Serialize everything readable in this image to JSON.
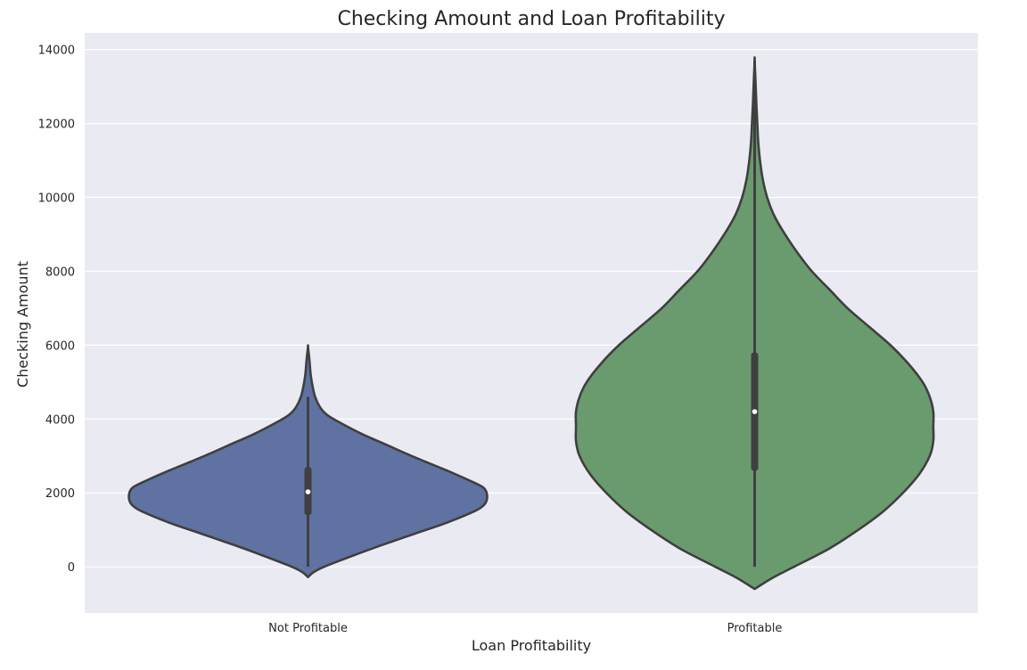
{
  "chart_data": {
    "type": "violin",
    "title": "Checking Amount and Loan Profitability",
    "xlabel": "Loan Profitability",
    "ylabel": "Checking Amount",
    "ylim": [
      -1250,
      14450
    ],
    "yticks": [
      0,
      2000,
      4000,
      6000,
      8000,
      10000,
      12000,
      14000
    ],
    "grid": true,
    "colors": {
      "background": "#eaeaf2",
      "grid": "#ffffff",
      "outline": "#3f3f3f"
    },
    "categories": [
      "Not Profitable",
      "Profitable"
    ],
    "violins": [
      {
        "category": "Not Profitable",
        "color": "#5f72a2",
        "min": 0,
        "max": 5900,
        "q1": 1400,
        "median": 2030,
        "q3": 2700,
        "whisker_low": 0,
        "whisker_high": 4600,
        "density_y": [
          -280,
          -150,
          0,
          300,
          600,
          900,
          1200,
          1500,
          1650,
          1800,
          2000,
          2150,
          2300,
          2600,
          3000,
          3300,
          3600,
          3900,
          4100,
          4300,
          4600,
          4900,
          5200,
          5600,
          5950
        ],
        "density_width": [
          0,
          0.03,
          0.09,
          0.25,
          0.42,
          0.6,
          0.78,
          0.93,
          0.98,
          1.0,
          1.0,
          0.98,
          0.92,
          0.78,
          0.58,
          0.44,
          0.3,
          0.18,
          0.11,
          0.07,
          0.04,
          0.025,
          0.015,
          0.008,
          0
        ]
      },
      {
        "category": "Profitable",
        "color": "#6a9b6e",
        "min": 0,
        "max": 13700,
        "q1": 2600,
        "median": 4200,
        "q3": 5800,
        "whisker_low": 0,
        "whisker_high": 13700,
        "density_y": [
          -600,
          -300,
          0,
          500,
          1000,
          1500,
          2000,
          2500,
          3000,
          3400,
          3800,
          4200,
          4600,
          5000,
          5500,
          6000,
          6500,
          7000,
          7500,
          8000,
          8500,
          9000,
          9500,
          10000,
          10500,
          11000,
          11500,
          12000,
          12500,
          13000,
          13700
        ],
        "density_width": [
          0,
          0.1,
          0.22,
          0.42,
          0.58,
          0.72,
          0.83,
          0.92,
          0.98,
          1.0,
          1.0,
          1.0,
          0.98,
          0.94,
          0.86,
          0.76,
          0.64,
          0.52,
          0.42,
          0.32,
          0.24,
          0.17,
          0.11,
          0.07,
          0.045,
          0.03,
          0.02,
          0.015,
          0.01,
          0.006,
          0
        ]
      }
    ]
  }
}
